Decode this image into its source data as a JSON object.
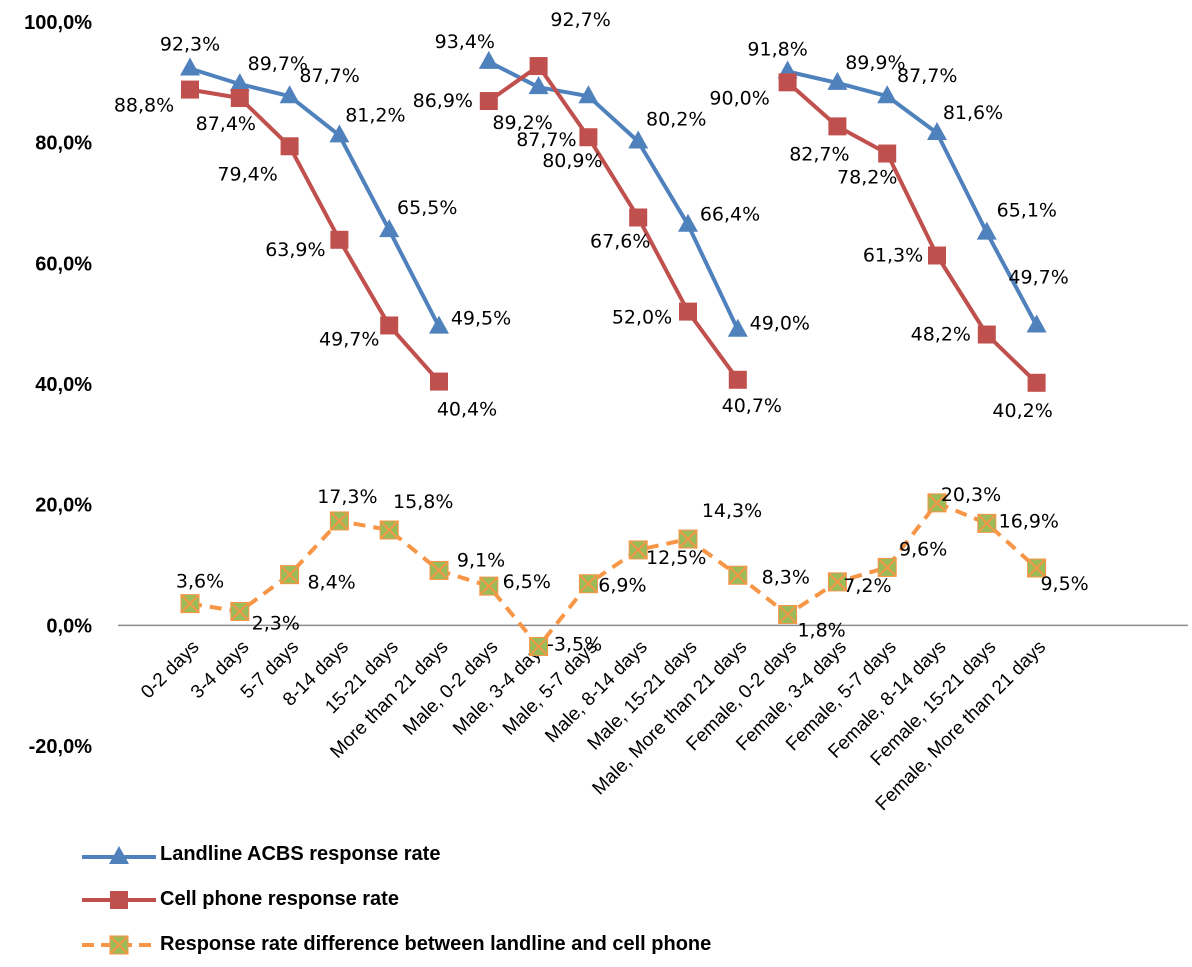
{
  "chart_data": {
    "type": "line",
    "ylim": [
      -20,
      100
    ],
    "yticks": [
      "100,0%",
      "80,0%",
      "60,0%",
      "40,0%",
      "20,0%",
      "0,0%",
      "-20,0%"
    ],
    "ytick_values": [
      100,
      80,
      60,
      40,
      20,
      0,
      -20
    ],
    "grid": false,
    "legend_position": "bottom-left",
    "categories": [
      "0-2 days",
      "3-4 days",
      "5-7 days",
      "8-14 days",
      "15-21 days",
      "More than 21 days",
      "Male, 0-2 days",
      "Male, 3-4 days",
      "Male, 5-7 days",
      "Male, 8-14 days",
      "Male, 15-21 days",
      "Male, More than 21 days",
      "Female, 0-2 days",
      "Female, 3-4 days",
      "Female, 5-7 days",
      "Female, 8-14 days",
      "Female, 15-21 days",
      "Female, More than 21 days"
    ],
    "series": [
      {
        "name": "Landline ACBS response rate",
        "color": "#4F81BD",
        "marker": "triangle",
        "values": [
          92.3,
          89.7,
          87.7,
          81.2,
          65.5,
          49.5,
          93.4,
          89.2,
          87.7,
          80.2,
          66.4,
          49.0,
          91.8,
          89.9,
          87.7,
          81.6,
          65.1,
          49.7
        ],
        "labels": [
          "92,3%",
          "89,7%",
          "87,7%",
          "81,2%",
          "65,5%",
          "49,5%",
          "93,4%",
          "89,2%",
          "87,7%",
          "80,2%",
          "66,4%",
          "49,0%",
          "91,8%",
          "89,9%",
          "87,7%",
          "81,6%",
          "65,1%",
          "49,7%"
        ]
      },
      {
        "name": "Cell phone response rate",
        "color": "#C0504D",
        "marker": "square",
        "values": [
          88.8,
          87.4,
          79.4,
          63.9,
          49.7,
          40.4,
          86.9,
          92.7,
          80.9,
          67.6,
          52.0,
          40.7,
          90.0,
          82.7,
          78.2,
          61.3,
          48.2,
          40.2
        ],
        "labels": [
          "88,8%",
          "87,4%",
          "79,4%",
          "63,9%",
          "49,7%",
          "40,4%",
          "86,9%",
          "92,7%",
          "80,9%",
          "67,6%",
          "52,0%",
          "40,7%",
          "90,0%",
          "82,7%",
          "78,2%",
          "61,3%",
          "48,2%",
          "40,2%"
        ]
      },
      {
        "name": "Response rate difference between landline and cell phone",
        "color": "#F79646",
        "marker": "x-square",
        "dashed": true,
        "values": [
          3.6,
          2.3,
          8.4,
          17.3,
          15.8,
          9.1,
          6.5,
          -3.5,
          6.9,
          12.5,
          14.3,
          8.3,
          1.8,
          7.2,
          9.6,
          20.3,
          16.9,
          9.5
        ],
        "labels": [
          "3,6%",
          "2,3%",
          "8,4%",
          "17,3%",
          "15,8%",
          "9,1%",
          "6,5%",
          "-3,5%",
          "6,9%",
          "12,5%",
          "14,3%",
          "8,3%",
          "1,8%",
          "7,2%",
          "9,6%",
          "20,3%",
          "16,9%",
          "9,5%"
        ]
      }
    ]
  }
}
